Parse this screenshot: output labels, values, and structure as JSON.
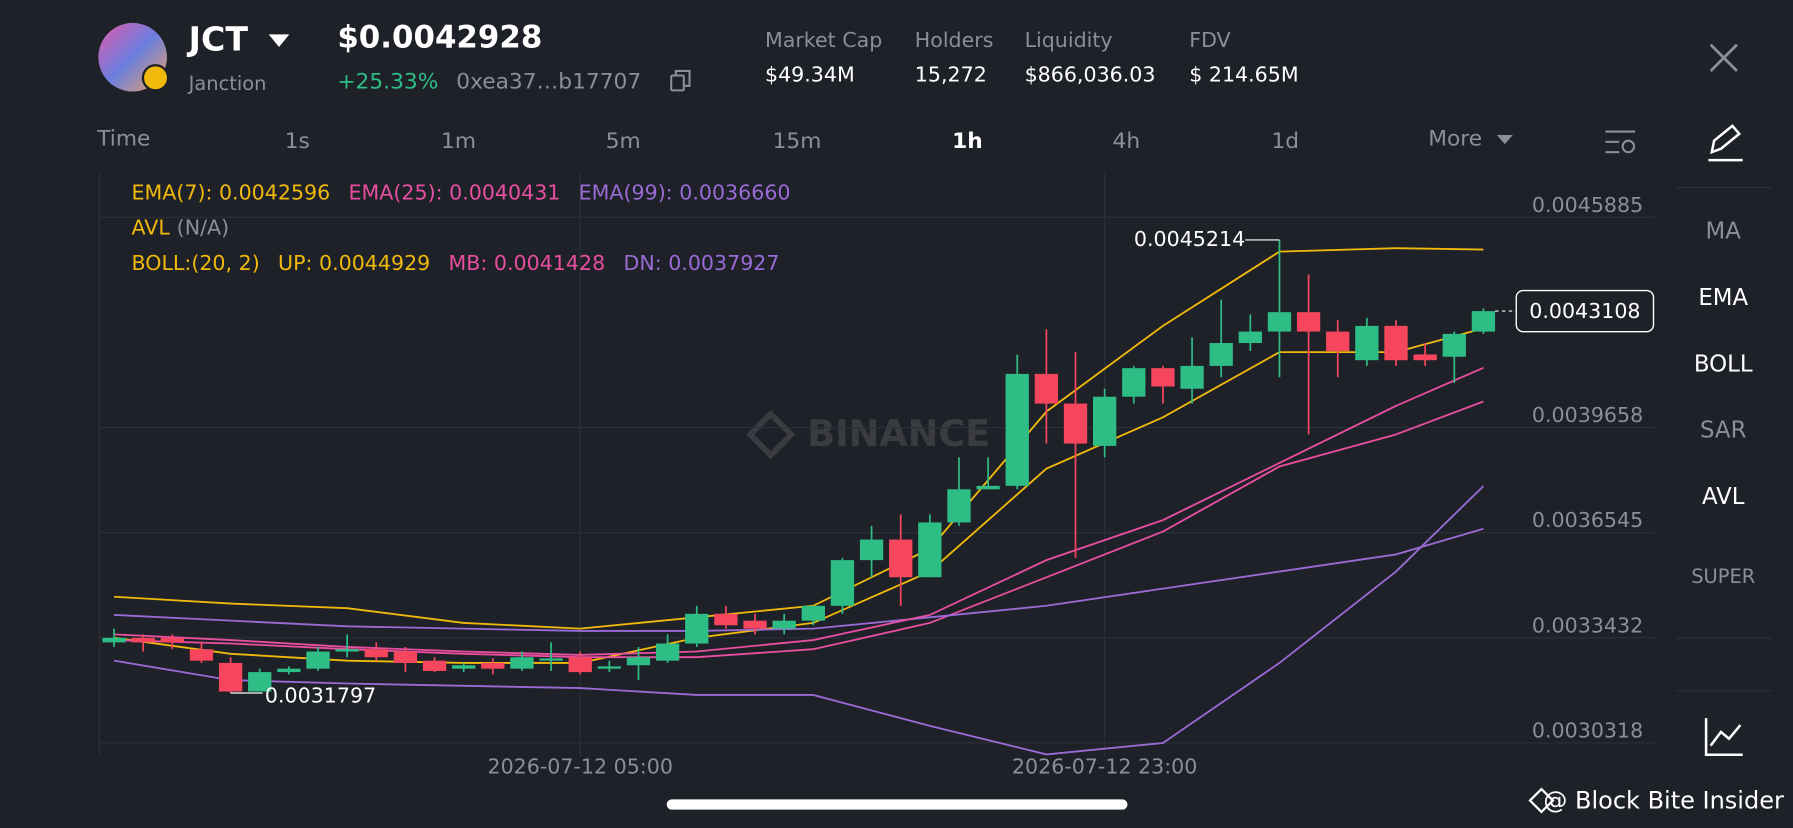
{
  "header": {
    "symbol": "JCT",
    "name": "Janction",
    "price": "$0.0042928",
    "change": "+25.33%",
    "address": "0xea37…b17707",
    "stats": [
      {
        "label": "Market Cap",
        "value": "$49.34M"
      },
      {
        "label": "Holders",
        "value": "15,272"
      },
      {
        "label": "Liquidity",
        "value": "$866,036.03"
      },
      {
        "label": "FDV",
        "value": "$ 214.65M"
      }
    ]
  },
  "timeframes": {
    "label": "Time",
    "options": [
      "1s",
      "1m",
      "5m",
      "15m",
      "1h",
      "4h",
      "1d"
    ],
    "active": 4,
    "more": "More"
  },
  "indicator_menu": {
    "items": [
      "MA",
      "EMA",
      "BOLL",
      "SAR",
      "AVL",
      "SUPER"
    ],
    "active": [
      1,
      2,
      4
    ]
  },
  "watermark": "BINANCE",
  "footer": "@ Block Bite Insider",
  "chart_data": {
    "type": "candlestick",
    "categories": [
      null,
      null,
      null,
      null,
      null,
      null,
      null,
      null,
      null,
      null,
      null,
      null,
      null,
      null,
      null,
      null,
      "2026-07-12 05:00",
      null,
      null,
      null,
      null,
      null,
      null,
      null,
      null,
      null,
      null,
      null,
      null,
      null,
      null,
      null,
      null,
      null,
      "2026-07-12 23:00",
      null,
      null,
      null,
      null,
      null,
      null,
      null,
      null,
      null,
      null,
      null,
      null,
      null
    ],
    "open": [
      0.0033296,
      0.0033431,
      0.0033431,
      0.0033093,
      0.0032687,
      0.0031841,
      0.0032416,
      0.0032517,
      0.0033025,
      0.0033093,
      0.0033025,
      0.0032754,
      0.0032517,
      0.0032687,
      0.0032517,
      0.0032754,
      0.0032856,
      0.0032517,
      0.0032619,
      0.0032754,
      0.0033262,
      0.0034142,
      0.0033939,
      0.0033702,
      0.0033939,
      0.0034379,
      0.0035732,
      0.0036341,
      0.0035225,
      0.0036849,
      0.003783,
      0.0037932,
      0.0041248,
      0.0040369,
      0.0039116,
      0.0040572,
      0.0041418,
      0.0040808,
      0.0041485,
      0.0042162,
      0.0042501,
      0.0043076,
      0.0042501,
      0.0041654,
      0.004267,
      0.0041824,
      0.0041756,
      0.0042501
    ],
    "high": [
      0.0033702,
      0.0033533,
      0.0033533,
      0.0033296,
      0.0032856,
      0.0032517,
      0.0032585,
      0.003316,
      0.0033533,
      0.0033296,
      0.003316,
      0.0032856,
      0.0032687,
      0.0032822,
      0.0033025,
      0.0033296,
      0.0033025,
      0.0032754,
      0.003316,
      0.0033533,
      0.0034379,
      0.0034379,
      0.0034142,
      0.0034142,
      0.0034379,
      0.00358,
      0.0036748,
      0.0037086,
      0.0037086,
      0.0038778,
      0.0038778,
      0.0041824,
      0.0042568,
      0.0041891,
      0.0040808,
      0.0041485,
      0.0041485,
      0.0042331,
      0.0043448,
      0.0043008,
      0.0045214,
      0.0044193,
      0.0042839,
      0.0042907,
      0.0042839,
      0.0042162,
      0.0042501,
      0.004319
    ],
    "low": [
      0.003316,
      0.0033025,
      0.0033093,
      0.0032687,
      0.0031797,
      0.0031841,
      0.0032348,
      0.003245,
      0.0032856,
      0.0032754,
      0.0032416,
      0.0032416,
      0.0032416,
      0.0032348,
      0.003245,
      0.003245,
      0.0032348,
      0.0032416,
      0.0032179,
      0.0032687,
      0.003316,
      0.0033702,
      0.0033533,
      0.0033533,
      0.0033803,
      0.0034142,
      0.0035225,
      0.0034379,
      0.0035225,
      0.0036748,
      0.003783,
      0.003783,
      0.0039184,
      0.00358,
      0.0038778,
      0.0040369,
      0.0040369,
      0.0040369,
      0.0041147,
      0.0041925,
      0.0041147,
      0.0039455,
      0.0041147,
      0.0041485,
      0.0041485,
      0.0041485,
      0.0040978,
      0.0042433
    ],
    "close": [
      0.0033431,
      0.0033296,
      0.0033296,
      0.0032754,
      0.0031841,
      0.0032416,
      0.0032517,
      0.0033025,
      0.0033093,
      0.0032856,
      0.0032687,
      0.003245,
      0.0032619,
      0.0032517,
      0.0032856,
      0.0032822,
      0.0032416,
      0.0032585,
      0.0032856,
      0.0033262,
      0.0034142,
      0.0033803,
      0.0033702,
      0.0033939,
      0.0034379,
      0.0035732,
      0.0036341,
      0.0035225,
      0.0036849,
      0.003783,
      0.0037932,
      0.0041248,
      0.0040369,
      0.0039184,
      0.0040572,
      0.0041418,
      0.0040876,
      0.0041485,
      0.0042162,
      0.0042501,
      0.0043076,
      0.0042501,
      0.0041925,
      0.004267,
      0.0041654,
      0.0041654,
      0.0042433,
      0.0043108
    ],
    "up_color": "#2ebd85",
    "down_color": "#f6465d",
    "ylim": [
      0.00299,
      0.004724
    ],
    "yticks": [
      0.0030318,
      0.0033432,
      0.0036545,
      0.0039658,
      0.0045885
    ],
    "grid": true,
    "lines": [
      {
        "name": "EMA(7): 0.0042596",
        "color": "#f0b90b",
        "x": [
          0,
          4,
          8,
          12,
          16,
          20,
          24,
          28,
          32,
          36,
          40,
          44,
          47
        ],
        "values": [
          0.0033431,
          0.0032957,
          0.0032754,
          0.0032687,
          0.0032687,
          0.0033431,
          0.0033871,
          0.0035394,
          0.003844,
          0.0039962,
          0.0041891,
          0.0041891,
          0.0042596
        ]
      },
      {
        "name": "EMA(25): 0.0040431",
        "color": "#e84fa0",
        "x": [
          0,
          4,
          8,
          12,
          16,
          20,
          24,
          28,
          32,
          36,
          40,
          44,
          47
        ],
        "values": [
          0.0033363,
          0.0033262,
          0.0033093,
          0.0032957,
          0.0032856,
          0.0032856,
          0.0033093,
          0.0033871,
          0.0035225,
          0.0036578,
          0.0038507,
          0.0039455,
          0.0040431
        ]
      },
      {
        "name": "EMA(99): 0.0036660",
        "color": "#9a6ad6",
        "x": [
          0,
          4,
          8,
          12,
          16,
          20,
          24,
          28,
          32,
          36,
          40,
          44,
          47
        ],
        "values": [
          0.0034108,
          0.0033939,
          0.003377,
          0.0033702,
          0.0033634,
          0.0033634,
          0.0033702,
          0.003404,
          0.0034379,
          0.0034887,
          0.0035394,
          0.0035902,
          0.003666
        ]
      },
      {
        "name": "UP: 0.0044929",
        "color": "#f0b90b",
        "x": [
          0,
          4,
          8,
          12,
          16,
          20,
          24,
          28,
          32,
          36,
          40,
          44,
          47
        ],
        "values": [
          0.0034649,
          0.0034446,
          0.0034311,
          0.0033871,
          0.0033702,
          0.003404,
          0.0034379,
          0.0036071,
          0.0040132,
          0.004267,
          0.0044869,
          0.0044971,
          0.0044929
        ]
      },
      {
        "name": "MB: 0.0041428",
        "color": "#e84fa0",
        "x": [
          0,
          4,
          8,
          12,
          16,
          20,
          24,
          28,
          32,
          36,
          40,
          44,
          47
        ],
        "values": [
          0.0033533,
          0.0033363,
          0.003316,
          0.0033025,
          0.0032923,
          0.0033025,
          0.0033363,
          0.0034108,
          0.0035732,
          0.0036917,
          0.0038609,
          0.0040301,
          0.0041428
        ]
      },
      {
        "name": "DN: 0.0037927",
        "color": "#9a6ad6",
        "x": [
          0,
          4,
          8,
          12,
          16,
          20,
          24,
          28,
          32,
          36,
          40,
          44,
          47
        ],
        "values": [
          0.0032754,
          0.0032179,
          0.0032077,
          0.003201,
          0.0031942,
          0.0031739,
          0.0031739,
          0.0030825,
          0.0029979,
          0.0030318,
          0.0032687,
          0.0035394,
          0.0037927
        ]
      }
    ],
    "boll_label": "BOLL:(20, 2)",
    "avl": {
      "label": "AVL",
      "value": "(N/A)"
    }
  }
}
